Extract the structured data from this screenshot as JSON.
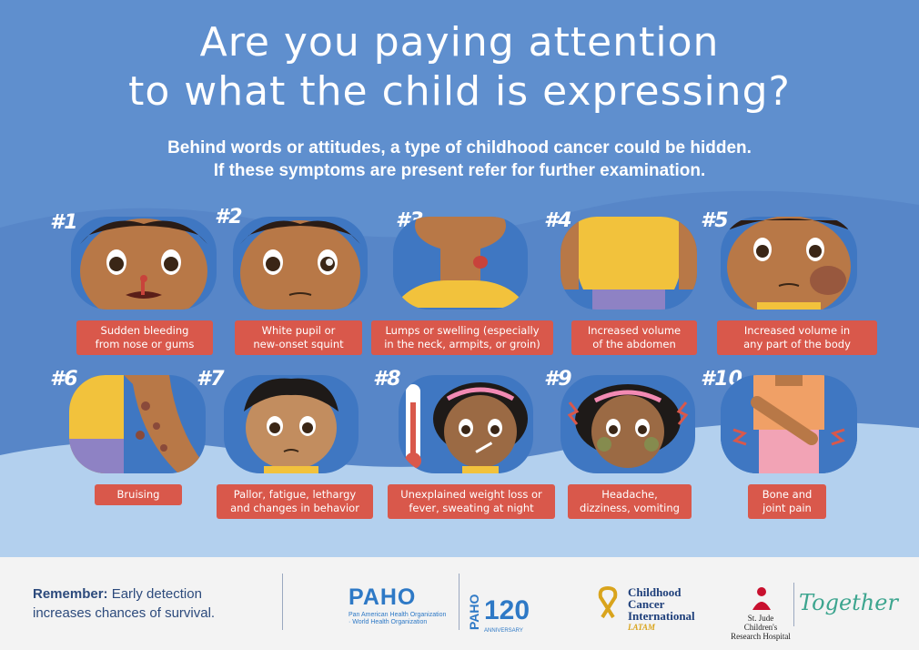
{
  "title": {
    "line1": "Are you paying attention",
    "line2": "to what the child is expressing?"
  },
  "subtitle": {
    "line1": "Behind words or attitudes, a type of childhood cancer could be hidden.",
    "line2": "If these symptoms are present refer for further examination."
  },
  "symptoms": [
    {
      "num": "#1",
      "line1": "Sudden bleeding",
      "line2": "from nose or gums"
    },
    {
      "num": "#2",
      "line1": "White pupil or",
      "line2": "new-onset squint"
    },
    {
      "num": "#3",
      "line1": "Lumps or swelling (especially",
      "line2": "in the neck, armpits, or groin)"
    },
    {
      "num": "#4",
      "line1": "Increased volume",
      "line2": "of the abdomen"
    },
    {
      "num": "#5",
      "line1": "Increased volume in",
      "line2": "any part of the body"
    },
    {
      "num": "#6",
      "line1": "Bruising",
      "line2": ""
    },
    {
      "num": "#7",
      "line1": "Pallor, fatigue, lethargy",
      "line2": "and changes in behavior"
    },
    {
      "num": "#8",
      "line1": "Unexplained weight loss or",
      "line2": "fever, sweating at night"
    },
    {
      "num": "#9",
      "line1": "Headache,",
      "line2": "dizziness, vomiting"
    },
    {
      "num": "#10",
      "line1": "Bone and",
      "line2": "joint pain"
    }
  ],
  "footer": {
    "remember_bold": "Remember:",
    "remember_text1": " Early detection",
    "remember_text2": "increases chances of survival.",
    "paho": "PAHO",
    "paho_sub1": "Pan American Health Organization",
    "paho_sub2": "World Health Organization",
    "paho120_text": "PAHO",
    "paho120_num": "120",
    "paho120_sub": "ANNIVERSARY",
    "cci_line1": "Childhood",
    "cci_line2": "Cancer",
    "cci_line3": "International",
    "cci_latam": "LATAM",
    "stjude_line1": "St. Jude Children's",
    "stjude_line2": "Research Hospital",
    "together": "Together"
  },
  "colors": {
    "background": "#5f8fce",
    "label_bg": "#d9584b",
    "skin": "#b87847",
    "shirt": "#f2c23c",
    "footer_bg": "#f3f3f3"
  }
}
